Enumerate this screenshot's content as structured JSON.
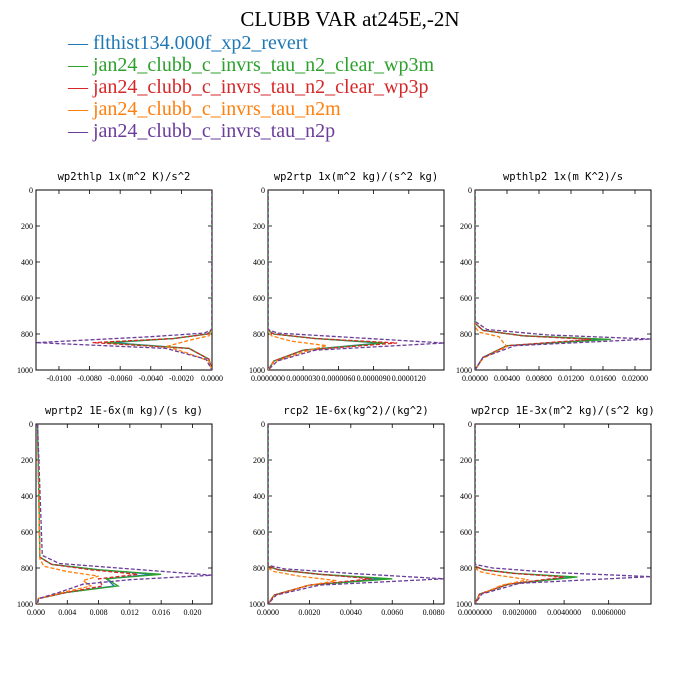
{
  "figure": {
    "title": "CLUBB VAR at245E,-2N",
    "colors": {
      "flthist134.000f_xp2_revert": "#1f77b4",
      "jan24_clubb_c_invrs_tau_n2_clear_wp3m": "#2ca02c",
      "jan24_clubb_c_invrs_tau_n2_clear_wp3p": "#d62728",
      "jan24_clubb_c_invrs_tau_n2m": "#ff7f0e",
      "jan24_clubb_c_invrs_tau_n2p": "#6a3d9a"
    }
  },
  "chart_data": [
    {
      "type": "line",
      "title": "wp2thlp  1x(m^2 K)/s^2",
      "ylim": [
        1000,
        0
      ],
      "xlim": [
        -0.0115,
        0.0
      ],
      "y_ticks": [
        "0",
        "200",
        "400",
        "600",
        "800",
        "1000"
      ],
      "x_ticks": [
        "-0.0100",
        "-0.0080",
        "-0.0060",
        "-0.0040",
        "-0.0020",
        "0.0000"
      ],
      "x_tick_values": [
        -0.01,
        -0.008,
        -0.006,
        -0.004,
        -0.002,
        0.0
      ],
      "series": [
        {
          "name": "flthist134.000f_xp2_revert",
          "style": "solid",
          "x": [
            0,
            0,
            -0.0003,
            -0.0025,
            -0.0065,
            -0.0015,
            -0.0002,
            0
          ],
          "y": [
            0,
            780,
            800,
            825,
            848,
            880,
            940,
            1000
          ]
        },
        {
          "name": "jan24_clubb_c_invrs_tau_n2_clear_wp3m",
          "style": "solid",
          "x": [
            0,
            0,
            -0.0003,
            -0.0025,
            -0.007,
            -0.0015,
            -0.0002,
            0
          ],
          "y": [
            0,
            780,
            800,
            825,
            848,
            880,
            940,
            1000
          ]
        },
        {
          "name": "jan24_clubb_c_invrs_tau_n2_clear_wp3p",
          "style": "dashed",
          "x": [
            0,
            0,
            -0.0003,
            -0.0025,
            -0.0078,
            -0.0015,
            -0.0002,
            0
          ],
          "y": [
            0,
            780,
            800,
            825,
            848,
            880,
            940,
            1000
          ]
        },
        {
          "name": "jan24_clubb_c_invrs_tau_n2m",
          "style": "dashed",
          "x": [
            0,
            0,
            -0.0002,
            -0.0015,
            -0.003,
            -0.0018,
            -0.0002,
            0
          ],
          "y": [
            0,
            780,
            810,
            835,
            870,
            900,
            950,
            1000
          ]
        },
        {
          "name": "jan24_clubb_c_invrs_tau_n2p",
          "style": "dashed",
          "x": [
            0,
            0,
            -0.0005,
            -0.004,
            -0.0115,
            -0.003,
            -0.0004,
            0
          ],
          "y": [
            0,
            775,
            795,
            815,
            848,
            880,
            940,
            1000
          ]
        }
      ]
    },
    {
      "type": "line",
      "title": "wp2rtp  1x(m^2 kg)/(s^2 kg)",
      "ylim": [
        1000,
        0
      ],
      "xlim": [
        0.0,
        0.00015
      ],
      "y_ticks": [
        "0",
        "200",
        "400",
        "600",
        "800",
        "1000"
      ],
      "x_ticks": [
        "0.0000000",
        "0.0000030",
        "0.0000060",
        "0.0000090",
        "0.0000120"
      ],
      "x_tick_values": [
        0.0,
        3e-05,
        6e-05,
        9e-05,
        0.00012
      ],
      "series": [
        {
          "name": "flthist134.000f_xp2_revert",
          "style": "solid",
          "x": [
            0,
            0,
            5e-06,
            4e-05,
            9.5e-05,
            3e-05,
            5e-06,
            0
          ],
          "y": [
            0,
            780,
            800,
            825,
            850,
            890,
            950,
            1000
          ]
        },
        {
          "name": "jan24_clubb_c_invrs_tau_n2_clear_wp3m",
          "style": "solid",
          "x": [
            0,
            0,
            5e-06,
            4e-05,
            0.0001,
            3e-05,
            5e-06,
            0
          ],
          "y": [
            0,
            780,
            800,
            825,
            850,
            890,
            950,
            1000
          ]
        },
        {
          "name": "jan24_clubb_c_invrs_tau_n2_clear_wp3p",
          "style": "dashed",
          "x": [
            0,
            0,
            5e-06,
            4e-05,
            0.00011,
            3e-05,
            5e-06,
            0
          ],
          "y": [
            0,
            780,
            800,
            825,
            850,
            890,
            950,
            1000
          ]
        },
        {
          "name": "jan24_clubb_c_invrs_tau_n2m",
          "style": "dashed",
          "x": [
            0,
            0,
            3e-06,
            2e-05,
            5e-05,
            3e-05,
            5e-06,
            0
          ],
          "y": [
            0,
            780,
            810,
            840,
            865,
            900,
            955,
            1000
          ]
        },
        {
          "name": "jan24_clubb_c_invrs_tau_n2p",
          "style": "dashed",
          "x": [
            0,
            0,
            8e-06,
            6e-05,
            0.00015,
            4e-05,
            8e-06,
            0
          ],
          "y": [
            0,
            775,
            795,
            815,
            850,
            890,
            950,
            1000
          ]
        }
      ]
    },
    {
      "type": "line",
      "title": "wpthlp2  1x(m K^2)/s",
      "ylim": [
        1000,
        0
      ],
      "xlim": [
        0.0,
        0.022
      ],
      "y_ticks": [
        "0",
        "200",
        "400",
        "600",
        "800",
        "1000"
      ],
      "x_ticks": [
        "0.00000",
        "0.00400",
        "0.00800",
        "0.01200",
        "0.01600",
        "0.02000"
      ],
      "x_tick_values": [
        0.0,
        0.004,
        0.008,
        0.012,
        0.016,
        0.02
      ],
      "series": [
        {
          "name": "flthist134.000f_xp2_revert",
          "style": "solid",
          "x": [
            0,
            0,
            0.001,
            0.006,
            0.016,
            0.004,
            0.001,
            0
          ],
          "y": [
            0,
            740,
            780,
            810,
            830,
            865,
            930,
            1000
          ]
        },
        {
          "name": "jan24_clubb_c_invrs_tau_n2_clear_wp3m",
          "style": "solid",
          "x": [
            0,
            0,
            0.001,
            0.006,
            0.017,
            0.004,
            0.001,
            0
          ],
          "y": [
            0,
            740,
            780,
            810,
            830,
            865,
            930,
            1000
          ]
        },
        {
          "name": "jan24_clubb_c_invrs_tau_n2_clear_wp3p",
          "style": "dashed",
          "x": [
            0,
            0,
            0.001,
            0.006,
            0.0145,
            0.004,
            0.001,
            0
          ],
          "y": [
            0,
            740,
            780,
            810,
            830,
            865,
            930,
            1000
          ]
        },
        {
          "name": "jan24_clubb_c_invrs_tau_n2m",
          "style": "dashed",
          "x": [
            0,
            0,
            0.0005,
            0.003,
            0.0035,
            0.004,
            0.001,
            0
          ],
          "y": [
            0,
            760,
            790,
            815,
            845,
            870,
            935,
            1000
          ]
        },
        {
          "name": "jan24_clubb_c_invrs_tau_n2p",
          "style": "dashed",
          "x": [
            0,
            0,
            0.0015,
            0.009,
            0.022,
            0.005,
            0.001,
            0
          ],
          "y": [
            0,
            730,
            775,
            805,
            828,
            865,
            930,
            1000
          ]
        }
      ]
    },
    {
      "type": "line",
      "title": "wprtp2  1E-6x(m kg)/(s kg)",
      "ylim": [
        1000,
        0
      ],
      "xlim": [
        0.0,
        0.0225
      ],
      "y_ticks": [
        "0",
        "200",
        "400",
        "600",
        "800",
        "1000"
      ],
      "x_ticks": [
        "0.000",
        "0.004",
        "0.008",
        "0.012",
        "0.016",
        "0.020"
      ],
      "x_tick_values": [
        0.0,
        0.004,
        0.008,
        0.012,
        0.016,
        0.02
      ],
      "series": [
        {
          "name": "flthist134.000f_xp2_revert",
          "style": "solid",
          "x": [
            0.0002,
            0.0005,
            0.002,
            0.008,
            0.015,
            0.009,
            0.01,
            0.004,
            0.0003,
            0.0002
          ],
          "y": [
            0,
            740,
            780,
            810,
            835,
            860,
            900,
            935,
            970,
            1000
          ]
        },
        {
          "name": "jan24_clubb_c_invrs_tau_n2_clear_wp3m",
          "style": "solid",
          "x": [
            0.0002,
            0.0005,
            0.002,
            0.008,
            0.016,
            0.009,
            0.0105,
            0.004,
            0.0003,
            0.0002
          ],
          "y": [
            0,
            740,
            780,
            810,
            835,
            860,
            900,
            935,
            970,
            1000
          ]
        },
        {
          "name": "jan24_clubb_c_invrs_tau_n2_clear_wp3p",
          "style": "dashed",
          "x": [
            0.0002,
            0.0005,
            0.002,
            0.007,
            0.013,
            0.008,
            0.0085,
            0.004,
            0.0003,
            0.0002
          ],
          "y": [
            0,
            740,
            780,
            810,
            835,
            860,
            900,
            935,
            970,
            1000
          ]
        },
        {
          "name": "jan24_clubb_c_invrs_tau_n2m",
          "style": "dashed",
          "x": [
            0.0002,
            0.0005,
            0.001,
            0.004,
            0.008,
            0.006,
            0.007,
            0.004,
            0.0003,
            0.0002
          ],
          "y": [
            0,
            750,
            790,
            820,
            845,
            870,
            900,
            930,
            970,
            1000
          ]
        },
        {
          "name": "jan24_clubb_c_invrs_tau_n2p",
          "style": "dashed",
          "x": [
            0.0002,
            0.0008,
            0.003,
            0.012,
            0.0225,
            0.012,
            0.006,
            0.003,
            0.0003,
            0.0002
          ],
          "y": [
            0,
            730,
            775,
            805,
            840,
            865,
            890,
            935,
            970,
            1000
          ]
        }
      ]
    },
    {
      "type": "line",
      "title": "rcp2  1E-6x(kg^2)/(kg^2)",
      "ylim": [
        1000,
        0
      ],
      "xlim": [
        0.0,
        0.0085
      ],
      "y_ticks": [
        "0",
        "200",
        "400",
        "600",
        "800",
        "1000"
      ],
      "x_ticks": [
        "0.0000",
        "0.0020",
        "0.0040",
        "0.0060",
        "0.0080"
      ],
      "x_tick_values": [
        0.0,
        0.002,
        0.004,
        0.006,
        0.008
      ],
      "series": [
        {
          "name": "flthist134.000f_xp2_revert",
          "style": "solid",
          "x": [
            0,
            0,
            0.0005,
            0.0025,
            0.0055,
            0.002,
            0.0003,
            0
          ],
          "y": [
            0,
            790,
            810,
            835,
            860,
            895,
            950,
            1000
          ]
        },
        {
          "name": "jan24_clubb_c_invrs_tau_n2_clear_wp3m",
          "style": "solid",
          "x": [
            0,
            0,
            0.0005,
            0.0025,
            0.006,
            0.002,
            0.0003,
            0
          ],
          "y": [
            0,
            790,
            810,
            835,
            860,
            895,
            950,
            1000
          ]
        },
        {
          "name": "jan24_clubb_c_invrs_tau_n2_clear_wp3p",
          "style": "dashed",
          "x": [
            0,
            0,
            0.0005,
            0.0025,
            0.005,
            0.002,
            0.0003,
            0
          ],
          "y": [
            0,
            790,
            810,
            835,
            860,
            895,
            950,
            1000
          ]
        },
        {
          "name": "jan24_clubb_c_invrs_tau_n2m",
          "style": "dashed",
          "x": [
            0,
            0,
            0.0003,
            0.0015,
            0.0033,
            0.0018,
            0.0003,
            0
          ],
          "y": [
            0,
            800,
            820,
            845,
            870,
            900,
            955,
            1000
          ]
        },
        {
          "name": "jan24_clubb_c_invrs_tau_n2p",
          "style": "dashed",
          "x": [
            0,
            0,
            0.0008,
            0.004,
            0.0085,
            0.0025,
            0.0004,
            0
          ],
          "y": [
            0,
            785,
            805,
            830,
            860,
            895,
            950,
            1000
          ]
        }
      ]
    },
    {
      "type": "line",
      "title": "wp2rcp  1E-3x(m^2 kg)/(s^2 kg)",
      "ylim": [
        1000,
        0
      ],
      "xlim": [
        0.0,
        0.0079
      ],
      "y_ticks": [
        "0",
        "200",
        "400",
        "600",
        "800",
        "1000"
      ],
      "x_ticks": [
        "0.0000000",
        "0.0020000",
        "0.0040000",
        "0.0060000"
      ],
      "x_tick_values": [
        0.0,
        0.002,
        0.004,
        0.006
      ],
      "series": [
        {
          "name": "flthist134.000f_xp2_revert",
          "style": "solid",
          "x": [
            0,
            0,
            0.0004,
            0.0018,
            0.0044,
            0.0015,
            0.0002,
            0
          ],
          "y": [
            0,
            790,
            810,
            830,
            850,
            890,
            945,
            1000
          ]
        },
        {
          "name": "jan24_clubb_c_invrs_tau_n2_clear_wp3m",
          "style": "solid",
          "x": [
            0,
            0,
            0.0004,
            0.0018,
            0.0046,
            0.0015,
            0.0002,
            0
          ],
          "y": [
            0,
            790,
            810,
            830,
            850,
            890,
            945,
            1000
          ]
        },
        {
          "name": "jan24_clubb_c_invrs_tau_n2_clear_wp3p",
          "style": "dashed",
          "x": [
            0,
            0,
            0.0004,
            0.0017,
            0.004,
            0.0015,
            0.0002,
            0
          ],
          "y": [
            0,
            790,
            810,
            830,
            850,
            890,
            945,
            1000
          ]
        },
        {
          "name": "jan24_clubb_c_invrs_tau_n2m",
          "style": "dashed",
          "x": [
            0,
            0,
            0.0002,
            0.001,
            0.0024,
            0.0012,
            0.0002,
            0
          ],
          "y": [
            0,
            800,
            820,
            840,
            865,
            895,
            950,
            1000
          ]
        },
        {
          "name": "jan24_clubb_c_invrs_tau_n2p",
          "style": "dashed",
          "x": [
            0,
            0,
            0.0008,
            0.0035,
            0.0079,
            0.002,
            0.0003,
            0
          ],
          "y": [
            0,
            780,
            800,
            825,
            848,
            885,
            945,
            1000
          ]
        }
      ]
    }
  ]
}
